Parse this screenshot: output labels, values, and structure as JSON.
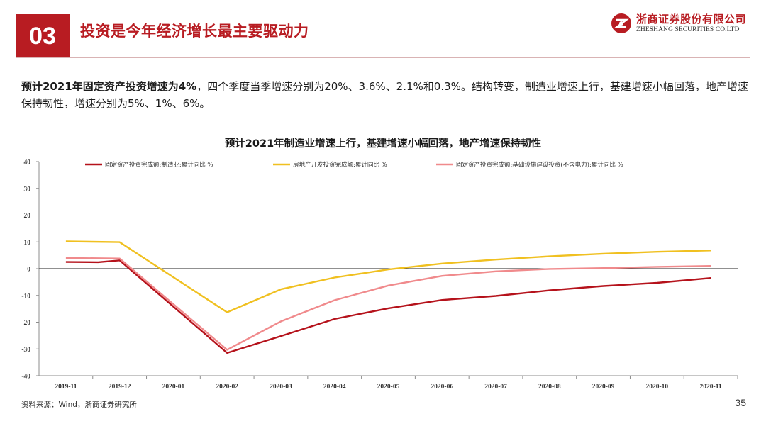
{
  "header": {
    "section_number": "03",
    "title": "投资是今年经济增长最主要驱动力",
    "brand_cn": "浙商证券股份有限公司",
    "brand_en": "ZHESHANG SECURITIES CO.LTD"
  },
  "summary": {
    "bold": "预计2021年固定资产投资增速为4%",
    "rest": "，四个季度当季增速分别为20%、3.6%、2.1%和0.3%。结构转变，制造业增速上行，基建增速小幅回落，地产增速保持韧性，增速分别为5%、1%、6%。"
  },
  "footer": {
    "source": "资料来源：Wind，浙商证券研究所",
    "page_number": "35"
  },
  "colors": {
    "brand_red": "#b81c22",
    "manufacturing": "#b5121b",
    "real_estate": "#f0c020",
    "infrastructure": "#f08a8c"
  },
  "chart_data": {
    "type": "line",
    "title": "预计2021年制造业增速上行，基建增速小幅回落，地产增速保持韧性",
    "categories": [
      "2019-11",
      "2019-12",
      "2020-01",
      "2020-02",
      "2020-03",
      "2020-04",
      "2020-05",
      "2020-06",
      "2020-07",
      "2020-08",
      "2020-09",
      "2020-10",
      "2020-11"
    ],
    "ylim": [
      -40,
      40
    ],
    "yticks": [
      40,
      30,
      20,
      10,
      0,
      -10,
      -20,
      -30,
      -40
    ],
    "legend_position": "top",
    "series": [
      {
        "name": "固定资产投资完成额:制造业:累计同比 %",
        "color_key": "manufacturing",
        "points": [
          [
            0,
            2.5
          ],
          [
            0.6,
            2.4
          ],
          [
            1,
            3.1
          ],
          [
            3,
            -31.5
          ],
          [
            4,
            -25.2
          ],
          [
            5,
            -18.8
          ],
          [
            6,
            -14.8
          ],
          [
            7,
            -11.7
          ],
          [
            8,
            -10.2
          ],
          [
            9,
            -8.1
          ],
          [
            10,
            -6.5
          ],
          [
            11,
            -5.3
          ],
          [
            12,
            -3.5
          ]
        ]
      },
      {
        "name": "房地产开发投资完成额:累计同比 %",
        "color_key": "real_estate",
        "points": [
          [
            0,
            10.2
          ],
          [
            1,
            9.9
          ],
          [
            3,
            -16.3
          ],
          [
            4,
            -7.7
          ],
          [
            5,
            -3.3
          ],
          [
            6,
            -0.3
          ],
          [
            7,
            1.9
          ],
          [
            8,
            3.4
          ],
          [
            9,
            4.6
          ],
          [
            10,
            5.6
          ],
          [
            11,
            6.3
          ],
          [
            12,
            6.8
          ]
        ]
      },
      {
        "name": "固定资产投资完成额:基础设施建设投资(不含电力):累计同比 %",
        "color_key": "infrastructure",
        "points": [
          [
            0,
            4.0
          ],
          [
            1,
            3.8
          ],
          [
            3,
            -30.3
          ],
          [
            4,
            -19.7
          ],
          [
            5,
            -11.8
          ],
          [
            6,
            -6.3
          ],
          [
            7,
            -2.7
          ],
          [
            8,
            -1.0
          ],
          [
            9,
            -0.1
          ],
          [
            10,
            0.2
          ],
          [
            11,
            0.7
          ],
          [
            12,
            1.0
          ]
        ]
      }
    ]
  }
}
